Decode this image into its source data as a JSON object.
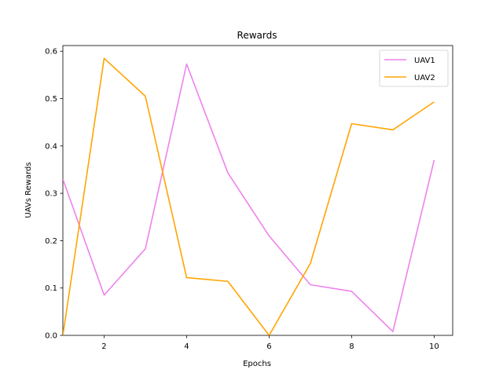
{
  "chart_data": {
    "type": "line",
    "title": "Rewards",
    "xlabel": "Epochs",
    "ylabel": "UAVs Rewards",
    "x": [
      1,
      2,
      3,
      4,
      5,
      6,
      7,
      8,
      9,
      10
    ],
    "xlim": [
      1,
      10.45
    ],
    "ylim": [
      0,
      0.612
    ],
    "xticks": [
      2,
      4,
      6,
      8,
      10
    ],
    "yticks": [
      0.0,
      0.1,
      0.2,
      0.3,
      0.4,
      0.5,
      0.6
    ],
    "ytick_labels": [
      "0.0",
      "0.1",
      "0.2",
      "0.3",
      "0.4",
      "0.5",
      "0.6"
    ],
    "grid": false,
    "legend_position": "top-right",
    "series": [
      {
        "name": "UAV1",
        "color": "#ee82ee",
        "values": [
          0.33,
          0.085,
          0.183,
          0.573,
          0.343,
          0.21,
          0.107,
          0.093,
          0.008,
          0.37
        ]
      },
      {
        "name": "UAV2",
        "color": "#ffa500",
        "values": [
          0.0,
          0.585,
          0.505,
          0.122,
          0.114,
          0.0,
          0.152,
          0.447,
          0.434,
          0.493
        ]
      }
    ]
  }
}
